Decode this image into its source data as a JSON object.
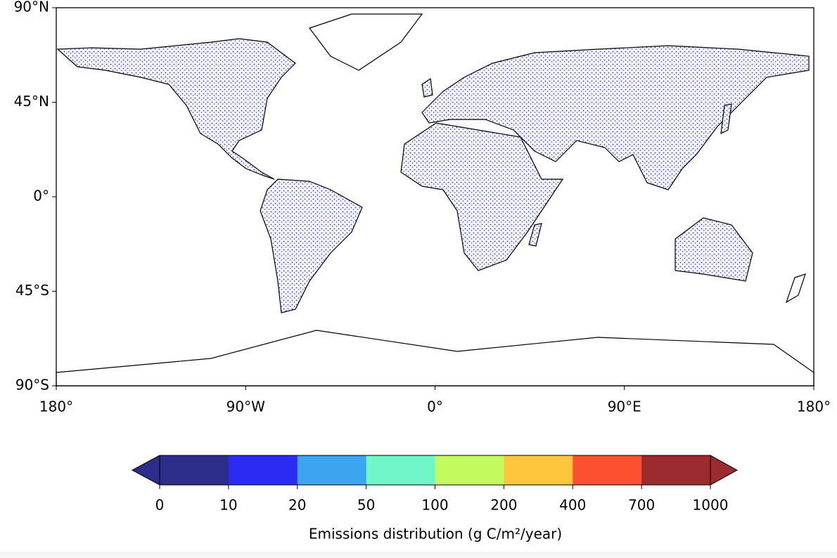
{
  "map": {
    "lat_labels": [
      "90°N",
      "45°N",
      "0°",
      "45°S",
      "90°S"
    ],
    "lon_labels": [
      "180°",
      "90°W",
      "0°",
      "90°E",
      "180°"
    ]
  },
  "colorbar": {
    "ticks": [
      0,
      10,
      20,
      50,
      100,
      200,
      400,
      700,
      1000
    ],
    "colors": [
      "#2d2d8c",
      "#2b2bf6",
      "#3ba6ef",
      "#6ff5c8",
      "#c3fb5e",
      "#fdc63d",
      "#fd502f",
      "#9b2b2f"
    ],
    "label": "Emissions distribution (g C/m²/year)"
  }
}
